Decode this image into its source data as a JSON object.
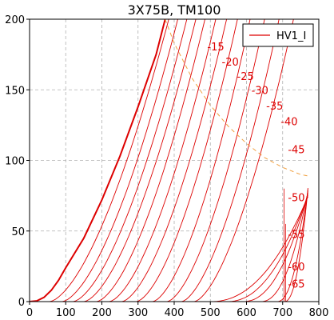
{
  "chart_data": {
    "type": "line",
    "title": "3X75B, TM100",
    "xlabel": "",
    "ylabel": "",
    "xlim": [
      0,
      800
    ],
    "ylim": [
      0,
      200
    ],
    "x_ticks": [
      0,
      100,
      200,
      300,
      400,
      500,
      600,
      700,
      800
    ],
    "y_ticks": [
      0,
      50,
      100,
      150,
      200
    ],
    "grid": true,
    "legend": {
      "position": "top-right",
      "entries": [
        "HV1_I"
      ]
    },
    "colors": {
      "curves": "#dd0000",
      "dissipation": "#f0a040",
      "grid": "#b0b0b0",
      "axis": "#000000"
    },
    "vg0_curve": {
      "name": "HV1_I",
      "points": [
        [
          0,
          0
        ],
        [
          20,
          0.5
        ],
        [
          40,
          3
        ],
        [
          60,
          8
        ],
        [
          80,
          15
        ],
        [
          100,
          24
        ],
        [
          150,
          45
        ],
        [
          200,
          72
        ],
        [
          250,
          103
        ],
        [
          300,
          138
        ],
        [
          350,
          175
        ],
        [
          375,
          200
        ]
      ]
    },
    "grid_curves": {
      "labels": [
        "-15",
        "-20",
        "-25",
        "-30",
        "-35",
        "-40",
        "-45",
        "-50",
        "-55",
        "-60",
        "-65"
      ],
      "x_start": [
        55,
        90,
        120,
        150,
        185,
        220,
        255,
        295,
        340,
        380,
        420,
        455,
        500,
        545,
        590,
        640,
        685,
        705
      ],
      "x_at_200mA": [
        385,
        410,
        435,
        460,
        485,
        515,
        545,
        575,
        610,
        650,
        690,
        730
      ]
    },
    "dissipation_curve": {
      "points": [
        [
          375,
          200
        ],
        [
          400,
          183
        ],
        [
          450,
          158
        ],
        [
          500,
          139
        ],
        [
          550,
          124
        ],
        [
          600,
          112
        ],
        [
          650,
          102
        ],
        [
          700,
          95
        ],
        [
          750,
          90
        ],
        [
          770,
          89
        ]
      ]
    },
    "curve_labels": [
      {
        "text": "-15",
        "x": 515,
        "y": 178
      },
      {
        "text": "-20",
        "x": 555,
        "y": 167
      },
      {
        "text": "-25",
        "x": 597,
        "y": 157
      },
      {
        "text": "-30",
        "x": 637,
        "y": 147
      },
      {
        "text": "-35",
        "x": 678,
        "y": 136
      },
      {
        "text": "-40",
        "x": 718,
        "y": 125
      },
      {
        "text": "-45",
        "x": 738,
        "y": 105
      },
      {
        "text": "-50",
        "x": 738,
        "y": 71
      },
      {
        "text": "-55",
        "x": 738,
        "y": 45
      },
      {
        "text": "-60",
        "x": 738,
        "y": 22
      },
      {
        "text": "-65",
        "x": 738,
        "y": 10
      }
    ]
  }
}
